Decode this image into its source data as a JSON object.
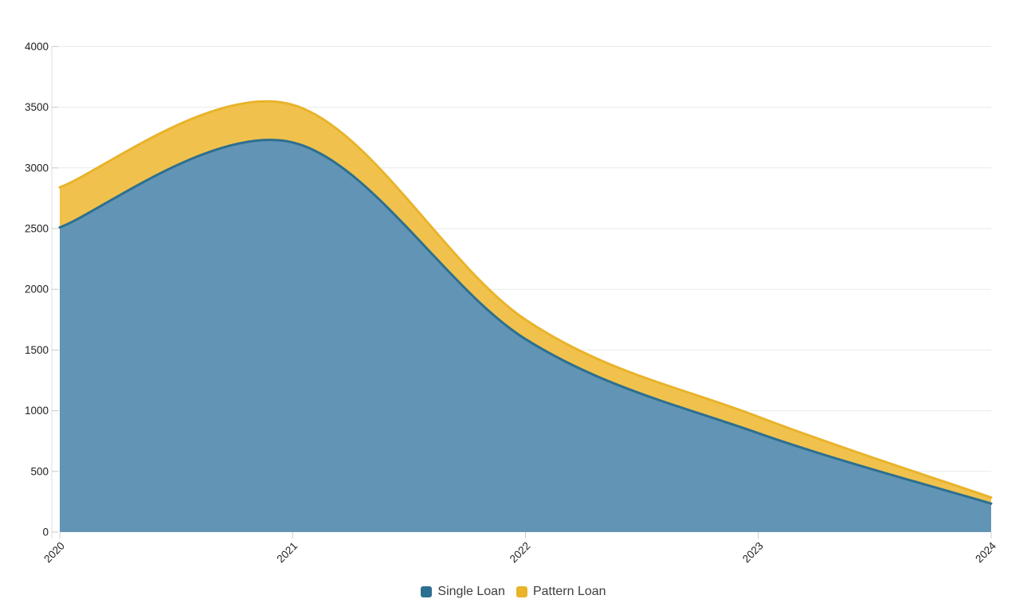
{
  "chart_data": {
    "type": "area",
    "stacked": true,
    "smooth": true,
    "title": "",
    "xlabel": "",
    "ylabel": "",
    "x_categories": [
      "2020",
      "2021",
      "2022",
      "2023",
      "2024"
    ],
    "series": [
      {
        "name": "Single Loan",
        "values": [
          2510,
          3210,
          1590,
          815,
          235
        ],
        "line_color": "#2d6f91",
        "fill_color": "#6295b5"
      },
      {
        "name": "Pattern Loan",
        "values": [
          330,
          310,
          160,
          135,
          50
        ],
        "line_color": "#e9b32a",
        "fill_color": "#f0c24d"
      }
    ],
    "stacked_totals": [
      2840,
      3520,
      1750,
      950,
      285
    ],
    "y_ticks": [
      0,
      500,
      1000,
      1500,
      2000,
      2500,
      3000,
      3500,
      4000
    ],
    "ylim": [
      0,
      4000
    ],
    "grid": true,
    "legend_position": "bottom",
    "x_label_rotation_deg": -45,
    "colors": {
      "background": "#ffffff",
      "grid_line": "#e9e9e9",
      "axis_line": "#dcdcdc",
      "tick": "#cccccc",
      "axis_label": "#212121",
      "legend_text": "#3d3d3d"
    }
  }
}
